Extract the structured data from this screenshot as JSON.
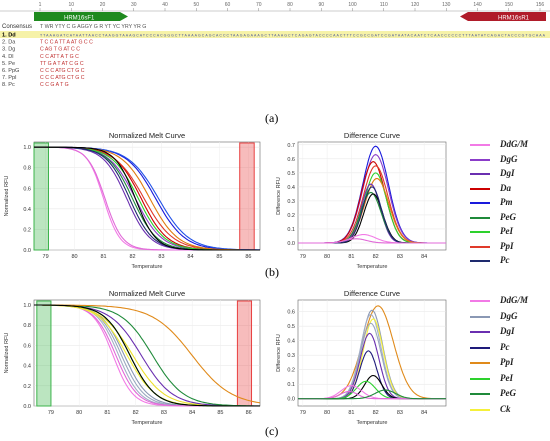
{
  "alignment": {
    "ruler": [
      "1",
      "10",
      "20",
      "30",
      "40",
      "50",
      "60",
      "70",
      "80",
      "90",
      "100",
      "110",
      "120",
      "130",
      "140",
      "150",
      "156"
    ],
    "primer_left": "HRM16sF1",
    "primer_right": "HRM16sR1",
    "consensus_label": "Consensus",
    "consensus_seq": "T WR YTY      C  G             AGGY                     G   R   YT  YC          YRY   YR     G",
    "rows": [
      {
        "label": "1. Dd",
        "seq": "TTAAAGATCATAATTAACCTAAGGTAAAGCATCCCACGGGCTTAAAAGCAGCACCCTAAGAGAAAGCTTAAAGCTCAGAGTACCCCAACTTTCCGCCGATCCGATAATACAATCTCAACCCCCCTTTAATATCAGACTACCCGTGCAAA"
      },
      {
        "label": "2. Da",
        "seq": "T        C      C             A TT          A      AT        G             C      C"
      },
      {
        "label": "3. Dg",
        "seq": "                C             AG T          G      AT        C             C"
      },
      {
        "label": "4. Dl",
        "seq": "        C       C             ATT           A      T         G             C"
      },
      {
        "label": "5. Pe",
        "seq": "      TT        G             A T               AT  C        G             C"
      },
      {
        "label": "6. PpG",
        "seq": "            C  C  C           ATG                  CT        G             C"
      },
      {
        "label": "7. PpI",
        "seq": "         C C       C          ATG                  CT        G             C"
      },
      {
        "label": "8. Pc",
        "seq": "      C    C    G             A                    T         G"
      }
    ]
  },
  "chart_data": [
    {
      "type": "line",
      "panel": "b",
      "title": "Normalized Melt Curve",
      "xlabel": "Temperature",
      "ylabel": "Normalized RFU",
      "xlim": [
        78.6,
        86.4
      ],
      "ylim": [
        0,
        1.05
      ],
      "xticks": [
        79,
        80,
        81,
        82,
        83,
        84,
        85,
        86
      ],
      "yticks": [
        0.0,
        0.2,
        0.4,
        0.6,
        0.8,
        1.0
      ],
      "threshold_regions": [
        {
          "from": 78.6,
          "to": 79.1,
          "color": "#3cb44b"
        },
        {
          "from": 85.7,
          "to": 86.2,
          "color": "#e84040"
        }
      ],
      "series": [
        {
          "color": "#f27ae6",
          "mid": 81.0,
          "w": 0.28
        },
        {
          "color": "#e06ad8",
          "mid": 81.05,
          "w": 0.3
        },
        {
          "color": "#6a2fb0",
          "mid": 81.8,
          "w": 0.4
        },
        {
          "color": "#8b3dc9",
          "mid": 82.1,
          "w": 0.45
        },
        {
          "color": "#cc0000",
          "mid": 82.3,
          "w": 0.45
        },
        {
          "color": "#e03a2a",
          "mid": 82.4,
          "w": 0.5
        },
        {
          "color": "#1a1adc",
          "mid": 82.8,
          "w": 0.5
        },
        {
          "color": "#2050e8",
          "mid": 82.9,
          "w": 0.52
        },
        {
          "color": "#1f8a3a",
          "mid": 82.0,
          "w": 0.42
        },
        {
          "color": "#2dd12d",
          "mid": 82.2,
          "w": 0.45
        },
        {
          "color": "#e07b10",
          "mid": 82.6,
          "w": 0.48
        },
        {
          "color": "#1e2a6e",
          "mid": 81.9,
          "w": 0.4
        },
        {
          "color": "#000000",
          "mid": 82.1,
          "w": 0.35
        }
      ]
    },
    {
      "type": "line",
      "panel": "b",
      "title": "Difference Curve",
      "xlabel": "Temperature",
      "ylabel": "Difference RFU",
      "xlim": [
        78.8,
        84.9
      ],
      "ylim": [
        -0.05,
        0.72
      ],
      "xticks": [
        79,
        80,
        81,
        82,
        83,
        84
      ],
      "yticks": [
        0.0,
        0.1,
        0.2,
        0.3,
        0.4,
        0.5,
        0.6,
        0.7
      ],
      "series": [
        {
          "color": "#1a1adc",
          "peak": 0.69,
          "center": 82.0,
          "w": 0.75
        },
        {
          "color": "#8b3dc9",
          "peak": 0.63,
          "center": 82.0,
          "w": 0.75
        },
        {
          "color": "#cc0000",
          "peak": 0.58,
          "center": 81.9,
          "w": 0.7
        },
        {
          "color": "#e03a2a",
          "peak": 0.55,
          "center": 82.0,
          "w": 0.72
        },
        {
          "color": "#2dd12d",
          "peak": 0.5,
          "center": 82.0,
          "w": 0.65
        },
        {
          "color": "#e07b10",
          "peak": 0.46,
          "center": 82.05,
          "w": 0.7
        },
        {
          "color": "#6a2fb0",
          "peak": 0.42,
          "center": 81.8,
          "w": 0.55
        },
        {
          "color": "#1f8a3a",
          "peak": 0.36,
          "center": 81.8,
          "w": 0.6
        },
        {
          "color": "#000000",
          "peak": 0.35,
          "center": 81.9,
          "w": 0.55
        },
        {
          "color": "#1e2a6e",
          "peak": 0.4,
          "center": 81.85,
          "w": 0.55
        },
        {
          "color": "#f27ae6",
          "peak": 0.06,
          "center": 81.5,
          "w": 0.7
        },
        {
          "color": "#e06ad8",
          "peak": 0.03,
          "center": 81.2,
          "w": 0.6
        }
      ]
    },
    {
      "type": "line",
      "panel": "c",
      "title": "Normalized Melt Curve",
      "xlabel": "Temperature",
      "ylabel": "Normalized RFU",
      "xlim": [
        78.4,
        86.4
      ],
      "ylim": [
        0,
        1.05
      ],
      "xticks": [
        79,
        80,
        81,
        82,
        83,
        84,
        85,
        86
      ],
      "yticks": [
        0.0,
        0.2,
        0.4,
        0.6,
        0.8,
        1.0
      ],
      "threshold_regions": [
        {
          "from": 78.5,
          "to": 79.0,
          "color": "#3cb44b"
        },
        {
          "from": 85.6,
          "to": 86.1,
          "color": "#e84040"
        }
      ],
      "series": [
        {
          "color": "#9aa8c0",
          "mid": 81.5,
          "w": 0.4
        },
        {
          "color": "#8a98b4",
          "mid": 81.6,
          "w": 0.42
        },
        {
          "color": "#a4b0c8",
          "mid": 81.4,
          "w": 0.38
        },
        {
          "color": "#f27ae6",
          "mid": 81.2,
          "w": 0.35
        },
        {
          "color": "#e06ad8",
          "mid": 81.3,
          "w": 0.38
        },
        {
          "color": "#f5f03a",
          "mid": 81.7,
          "w": 0.5
        },
        {
          "color": "#ece02a",
          "mid": 81.9,
          "w": 0.55
        },
        {
          "color": "#6a2fb0",
          "mid": 82.2,
          "w": 0.55
        },
        {
          "color": "#1f8a3a",
          "mid": 82.6,
          "w": 0.55
        },
        {
          "color": "#2dd12d",
          "mid": 81.8,
          "w": 0.45
        },
        {
          "color": "#e08a1a",
          "mid": 84.0,
          "w": 0.7
        },
        {
          "color": "#000000",
          "mid": 81.8,
          "w": 0.45
        }
      ]
    },
    {
      "type": "line",
      "panel": "c",
      "title": "Difference Curve",
      "xlabel": "Temperature",
      "ylabel": "Difference RFU",
      "xlim": [
        78.8,
        84.9
      ],
      "ylim": [
        -0.05,
        0.68
      ],
      "xticks": [
        79,
        80,
        81,
        82,
        83,
        84
      ],
      "yticks": [
        0.0,
        0.1,
        0.2,
        0.3,
        0.4,
        0.5,
        0.6
      ],
      "series": [
        {
          "color": "#e08a1a",
          "peak": 0.64,
          "center": 82.1,
          "w": 0.9
        },
        {
          "color": "#8a98b4",
          "peak": 0.61,
          "center": 81.85,
          "w": 0.62
        },
        {
          "color": "#a4b0c8",
          "peak": 0.58,
          "center": 81.8,
          "w": 0.6
        },
        {
          "color": "#f5f03a",
          "peak": 0.55,
          "center": 81.9,
          "w": 0.58
        },
        {
          "color": "#9aa8c0",
          "peak": 0.52,
          "center": 81.8,
          "w": 0.6
        },
        {
          "color": "#6a2fb0",
          "peak": 0.45,
          "center": 81.75,
          "w": 0.55
        },
        {
          "color": "#1e1a7a",
          "peak": 0.33,
          "center": 81.7,
          "w": 0.5
        },
        {
          "color": "#000000",
          "peak": 0.16,
          "center": 81.9,
          "w": 0.5
        },
        {
          "color": "#2dd12d",
          "peak": 0.12,
          "center": 81.6,
          "w": 0.55
        },
        {
          "color": "#f27ae6",
          "peak": 0.09,
          "center": 81.0,
          "w": 0.6
        },
        {
          "color": "#e06ad8",
          "peak": 0.05,
          "center": 80.9,
          "w": 0.5
        },
        {
          "color": "#1f8a3a",
          "peak": 0.06,
          "center": 82.4,
          "w": 0.6
        }
      ]
    }
  ],
  "legend_b": [
    {
      "label": "DdG/M",
      "color": "#f27ae6"
    },
    {
      "label": "DgG",
      "color": "#8b3dc9"
    },
    {
      "label": "DgI",
      "color": "#6a2fb0"
    },
    {
      "label": "Da",
      "color": "#cc0000"
    },
    {
      "label": "Pm",
      "color": "#1a1adc"
    },
    {
      "label": "PeG",
      "color": "#1f8a3a"
    },
    {
      "label": "PeI",
      "color": "#2dd12d"
    },
    {
      "label": "PpI",
      "color": "#e03a2a"
    },
    {
      "label": "Pc",
      "color": "#1e2a6e"
    }
  ],
  "legend_c": [
    {
      "label": "DdG/M",
      "color": "#f27ae6"
    },
    {
      "label": "DgG",
      "color": "#8a98b4"
    },
    {
      "label": "DgI",
      "color": "#6a2fb0"
    },
    {
      "label": "Pc",
      "color": "#1e1a7a"
    },
    {
      "label": "PpI",
      "color": "#e08a1a"
    },
    {
      "label": "PeI",
      "color": "#2dd12d"
    },
    {
      "label": "PeG",
      "color": "#1f8a3a"
    },
    {
      "label": "Ck",
      "color": "#f5f03a"
    }
  ],
  "captions": {
    "a": "(a)",
    "b": "(b)",
    "c": "(c)"
  }
}
